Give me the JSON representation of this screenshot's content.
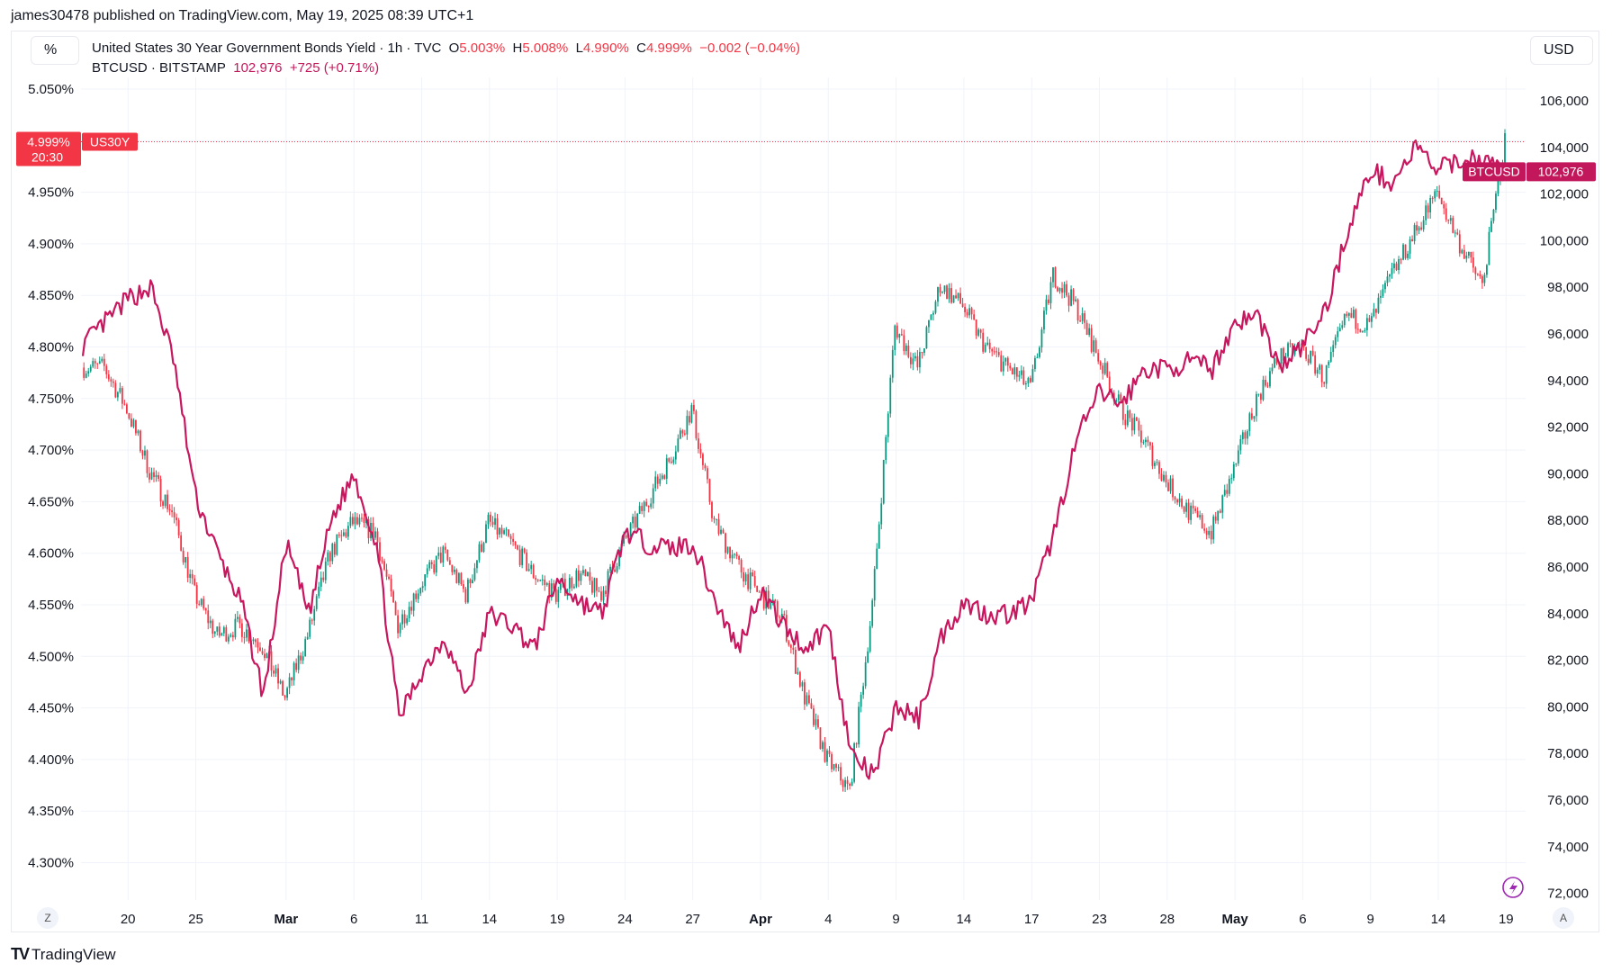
{
  "header": {
    "published": "james30478 published on TradingView.com, May 19, 2025 08:39 UTC+1"
  },
  "left_unit": "%",
  "right_unit": "USD",
  "legend": {
    "series1": {
      "title": "United States 30 Year Government Bonds Yield · 1h · TVC",
      "o_label": "O",
      "o": "5.003%",
      "h_label": "H",
      "h": "5.008%",
      "l_label": "L",
      "l": "4.990%",
      "c_label": "C",
      "c": "4.999%",
      "change": "−0.002 (−0.04%)"
    },
    "series2": {
      "title": "BTCUSD · BITSTAMP",
      "price": "102,976",
      "change": "+725 (+0.71%)"
    }
  },
  "badges": {
    "us30y_price": "4.999%",
    "us30y_countdown": "20:30",
    "us30y_name": "US30Y",
    "btc_name": "BTCUSD",
    "btc_price": "102,976"
  },
  "axis_buttons": {
    "left": "Z",
    "right": "A"
  },
  "brand": "TradingView",
  "colors": {
    "up": "#089981",
    "down": "#f23645",
    "btc_line": "#c8175e",
    "badge_red": "#f23645",
    "badge_btc": "#c2185b"
  },
  "chart_data": {
    "type": "line",
    "series": [
      {
        "name": "US30Y",
        "style": "candlestick",
        "axis": "left",
        "unit": "%",
        "values": [
          4.78,
          4.78,
          4.74,
          4.68,
          4.64,
          4.56,
          4.52,
          4.53,
          4.51,
          4.46,
          4.52,
          4.6,
          4.63,
          4.62,
          4.53,
          4.57,
          4.6,
          4.56,
          4.63,
          4.61,
          4.58,
          4.56,
          4.58,
          4.56,
          4.61,
          4.65,
          4.69,
          4.74,
          4.63,
          4.59,
          4.56,
          4.54,
          4.46,
          4.4,
          4.37,
          4.55,
          4.82,
          4.78,
          4.86,
          4.84,
          4.8,
          4.78,
          4.76,
          4.87,
          4.84,
          4.79,
          4.74,
          4.71,
          4.67,
          4.64,
          4.62,
          4.68,
          4.75,
          4.79,
          4.8,
          4.77,
          4.83,
          4.82,
          4.87,
          4.91,
          4.95,
          4.9,
          4.86,
          4.999
        ]
      },
      {
        "name": "BTCUSD",
        "style": "line",
        "axis": "right",
        "unit": "USD",
        "values": [
          95500,
          96500,
          97500,
          98000,
          95000,
          89000,
          86500,
          84500,
          80500,
          87000,
          84000,
          88000,
          90000,
          87000,
          79500,
          81500,
          83000,
          80500,
          84000,
          83500,
          82500,
          85500,
          84500,
          84000,
          87500,
          87000,
          86800,
          87000,
          84500,
          82500,
          85000,
          83500,
          82500,
          83500,
          78000,
          77000,
          80000,
          79500,
          83000,
          84500,
          84000,
          84000,
          84500,
          87500,
          91500,
          93500,
          93000,
          94500,
          94500,
          94800,
          94500,
          96500,
          96800,
          94500,
          95500,
          97000,
          100500,
          103000,
          102500,
          104000,
          103000,
          103500,
          103500,
          102976
        ]
      }
    ],
    "x": [
      "Feb 18",
      "Feb 19",
      "Feb 20",
      "Feb 21",
      "Feb 24",
      "Feb 25",
      "Feb 26",
      "Feb 27",
      "Feb 28",
      "Mar 3",
      "Mar 4",
      "Mar 5",
      "Mar 6",
      "Mar 7",
      "Mar 10",
      "Mar 11",
      "Mar 12",
      "Mar 13",
      "Mar 14",
      "Mar 17",
      "Mar 18",
      "Mar 19",
      "Mar 20",
      "Mar 21",
      "Mar 24",
      "Mar 25",
      "Mar 26",
      "Mar 27",
      "Mar 28",
      "Mar 31",
      "Apr 1",
      "Apr 2",
      "Apr 3",
      "Apr 4",
      "Apr 7",
      "Apr 8",
      "Apr 9",
      "Apr 10",
      "Apr 11",
      "Apr 14",
      "Apr 15",
      "Apr 16",
      "Apr 17",
      "Apr 21",
      "Apr 22",
      "Apr 23",
      "Apr 24",
      "Apr 25",
      "Apr 28",
      "Apr 29",
      "Apr 30",
      "May 1",
      "May 2",
      "May 5",
      "May 6",
      "May 7",
      "May 8",
      "May 9",
      "May 12",
      "May 13",
      "May 14",
      "May 15",
      "May 16",
      "May 19"
    ],
    "x_ticks": [
      {
        "label": "20",
        "at": "Feb 20"
      },
      {
        "label": "25",
        "at": "Feb 25"
      },
      {
        "label": "Mar",
        "at": "Mar 3",
        "bold": true
      },
      {
        "label": "6",
        "at": "Mar 6"
      },
      {
        "label": "11",
        "at": "Mar 11"
      },
      {
        "label": "14",
        "at": "Mar 14"
      },
      {
        "label": "19",
        "at": "Mar 19"
      },
      {
        "label": "24",
        "at": "Mar 24"
      },
      {
        "label": "27",
        "at": "Mar 27"
      },
      {
        "label": "Apr",
        "at": "Apr 1",
        "bold": true
      },
      {
        "label": "4",
        "at": "Apr 4"
      },
      {
        "label": "9",
        "at": "Apr 9"
      },
      {
        "label": "14",
        "at": "Apr 14"
      },
      {
        "label": "17",
        "at": "Apr 17"
      },
      {
        "label": "23",
        "at": "Apr 23"
      },
      {
        "label": "28",
        "at": "Apr 28"
      },
      {
        "label": "May",
        "at": "May 1",
        "bold": true
      },
      {
        "label": "6",
        "at": "May 6"
      },
      {
        "label": "9",
        "at": "May 9"
      },
      {
        "label": "14",
        "at": "May 14"
      },
      {
        "label": "19",
        "at": "May 19"
      }
    ],
    "left_axis": {
      "ticks": [
        "5.050%",
        "4.950%",
        "4.900%",
        "4.850%",
        "4.800%",
        "4.750%",
        "4.700%",
        "4.650%",
        "4.600%",
        "4.550%",
        "4.500%",
        "4.450%",
        "4.400%",
        "4.350%",
        "4.300%"
      ],
      "range": [
        4.3,
        5.05
      ]
    },
    "right_axis": {
      "ticks": [
        "106,000",
        "104,000",
        "102,000",
        "100,000",
        "98,000",
        "96,000",
        "94,000",
        "92,000",
        "90,000",
        "88,000",
        "86,000",
        "84,000",
        "82,000",
        "80,000",
        "78,000",
        "76,000",
        "74,000",
        "72,000"
      ],
      "range": [
        72000,
        106000
      ]
    },
    "grid": true
  }
}
